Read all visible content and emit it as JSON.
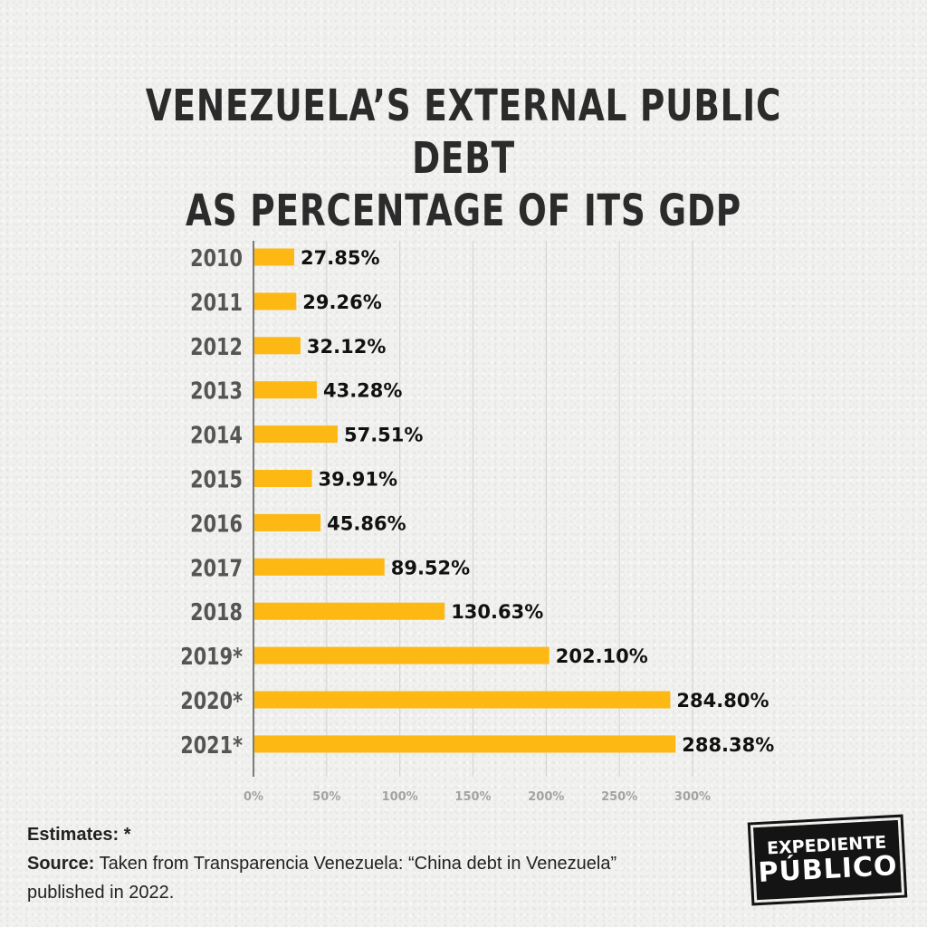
{
  "title_line1": "VENEZUELA’S EXTERNAL PUBLIC DEBT",
  "title_line2": "AS PERCENTAGE OF ITS GDP",
  "chart_data": {
    "type": "bar",
    "orientation": "horizontal",
    "categories": [
      "2010",
      "2011",
      "2012",
      "2013",
      "2014",
      "2015",
      "2016",
      "2017",
      "2018",
      "2019*",
      "2020*",
      "2021*"
    ],
    "values": [
      27.85,
      29.26,
      32.12,
      43.28,
      57.51,
      39.91,
      45.86,
      89.52,
      130.63,
      202.1,
      284.8,
      288.38
    ],
    "value_labels": [
      "27.85%",
      "29.26%",
      "32.12%",
      "43.28%",
      "57.51%",
      "39.91%",
      "45.86%",
      "89.52%",
      "130.63%",
      "202.10%",
      "284.80%",
      "288.38%"
    ],
    "xticks": [
      "0%",
      "50%",
      "100%",
      "150%",
      "200%",
      "250%",
      "300%"
    ],
    "xlim": [
      0,
      300
    ],
    "grid": true,
    "bar_color": "#FDB813"
  },
  "footer": {
    "estimates_label": "Estimates: *",
    "source_label": "Source:",
    "source_text": " Taken from Transparencia Venezuela: “China debt in Venezuela” published in 2022."
  },
  "logo": {
    "line1": "EXPEDIENTE",
    "line2": "PÚBLICO"
  }
}
